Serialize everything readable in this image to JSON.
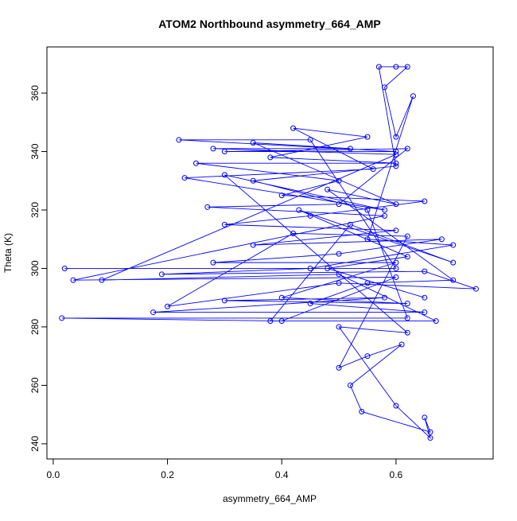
{
  "chart_data": {
    "type": "scatter",
    "connect_points": true,
    "title": "ATOM2 Northbound asymmetry_664_AMP",
    "x_label": "asymmetry_664_AMP",
    "y_label": "Theta (K)",
    "xlim": [
      -0.011,
      0.77
    ],
    "ylim": [
      234.8,
      375.8
    ],
    "xticks": [
      {
        "value": 0,
        "label": "0.0"
      },
      0.2,
      0.4,
      0.6
    ],
    "yticks": [
      240,
      260,
      280,
      300,
      320,
      340,
      360
    ],
    "series": [
      {
        "color": "#0000ff",
        "x": [
          0.02,
          0.6,
          0.45,
          0.22,
          0.6,
          0.3,
          0.62,
          0.5,
          0.27,
          0.58,
          0.035,
          0.6,
          0.4,
          0.015,
          0.62,
          0.55,
          0.35,
          0.6,
          0.57,
          0.6,
          0.62,
          0.58,
          0.6,
          0.63,
          0.55,
          0.7,
          0.45,
          0.19,
          0.65,
          0.74,
          0.5,
          0.2,
          0.42,
          0.62,
          0.5,
          0.55,
          0.61,
          0.52,
          0.54,
          0.66,
          0.65,
          0.66,
          0.6,
          0.5,
          0.62,
          0.3,
          0.58,
          0.23,
          0.56,
          0.42,
          0.55,
          0.38,
          0.6,
          0.25,
          0.5,
          0.4,
          0.65,
          0.45,
          0.3,
          0.6,
          0.35,
          0.68,
          0.5,
          0.28,
          0.6,
          0.4,
          0.62,
          0.3,
          0.58,
          0.175,
          0.65,
          0.45,
          0.55,
          0.7,
          0.48,
          0.6,
          0.35,
          0.52,
          0.28,
          0.6,
          0.085,
          0.5,
          0.67,
          0.38,
          0.52,
          0.7,
          0.43,
          0.62,
          0.48,
          0.65
        ],
        "values": [
          300,
          300,
          344,
          344,
          340,
          340,
          341,
          322,
          321,
          318,
          296,
          297,
          282,
          283,
          283,
          320,
          330,
          335,
          369,
          369,
          369,
          362,
          345,
          359,
          310,
          308,
          300,
          298,
          299,
          293,
          295,
          287,
          312,
          311,
          266,
          270,
          274,
          260,
          251,
          244,
          249,
          242,
          253,
          280,
          278,
          332,
          320,
          331,
          334,
          348,
          345,
          338,
          336,
          336,
          330,
          325,
          323,
          318,
          315,
          313,
          308,
          310,
          305,
          302,
          302,
          290,
          288,
          289,
          290,
          285,
          285,
          288,
          295,
          296,
          327,
          322,
          343,
          341,
          341,
          339,
          296,
          298,
          282,
          282,
          315,
          302,
          320,
          304,
          300,
          290
        ]
      }
    ]
  }
}
